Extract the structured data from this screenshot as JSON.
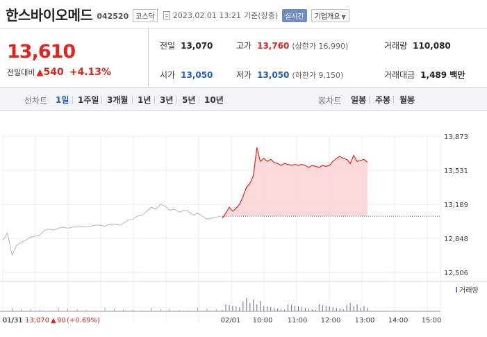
{
  "header": {
    "stock_name": "한스바이오메드",
    "stock_code": "042520",
    "market": "코스닥",
    "timestamp": "2023.02.01 13:21",
    "timestamp_suffix": "기준(장중)",
    "realtime_badge": "실시간",
    "company_info_button": "기업개요"
  },
  "quote": {
    "price": "13,610",
    "change_label": "전일대비",
    "change_symbol": "▲",
    "change_amount": "540",
    "change_percent": "+4.13%"
  },
  "stats": {
    "prev_close": {
      "label": "전일",
      "value": "13,070"
    },
    "open": {
      "label": "시가",
      "value": "13,050"
    },
    "high": {
      "label": "고가",
      "value": "13,760",
      "sub": "(상한가 16,990)"
    },
    "low": {
      "label": "저가",
      "value": "13,050",
      "sub": "(하한가 9,150)"
    },
    "volume": {
      "label": "거래량",
      "value": "110,080"
    },
    "turnover": {
      "label": "거래대금",
      "value": "1,489 백만"
    }
  },
  "range_bar": {
    "line_label": "선차트",
    "line_items": [
      "1일",
      "1주일",
      "3개월",
      "1년",
      "3년",
      "5년",
      "10년"
    ],
    "active_line_item": "1일",
    "candle_label": "봉차트",
    "candle_items": [
      "일봉",
      "주봉",
      "월봉"
    ]
  },
  "chart_data": {
    "type": "line",
    "y_ticks": [
      "13,873",
      "13,531",
      "13,189",
      "12,848",
      "12,506"
    ],
    "ylim": [
      12506,
      13873
    ],
    "x_tick_labels": [
      "01/31",
      "02/01",
      "10:00",
      "11:00",
      "12:00",
      "13:00",
      "14:00",
      "15:00"
    ],
    "reference_price": 13070,
    "volume_legend": "거래량",
    "prev_day_series": {
      "color": "#b5b5b5",
      "values": [
        12830,
        12900,
        12680,
        12780,
        12810,
        12830,
        12860,
        12870,
        12880,
        12930,
        12940,
        12930,
        12950,
        12960,
        12950,
        12960,
        12960,
        12970,
        12960,
        12970,
        12980,
        12980,
        12970,
        12990,
        12990,
        12980,
        13000,
        13030,
        13040,
        13070,
        13080,
        13120,
        13160,
        13140,
        13190,
        13170,
        13130,
        13140,
        13110,
        13130,
        13120,
        13080,
        13100,
        13070,
        13040,
        13050,
        13060,
        13070
      ]
    },
    "today_series": {
      "color": "#e2251b",
      "fill": "#fbd6d8",
      "values": [
        13050,
        13100,
        13160,
        13120,
        13150,
        13190,
        13270,
        13360,
        13400,
        13480,
        13760,
        13620,
        13650,
        13620,
        13640,
        13610,
        13600,
        13580,
        13600,
        13590,
        13580,
        13590,
        13580,
        13590,
        13580,
        13560,
        13580,
        13570,
        13560,
        13580,
        13570,
        13580,
        13620,
        13650,
        13670,
        13650,
        13640,
        13600,
        13680,
        13620,
        13630,
        13640,
        13610
      ]
    }
  },
  "footer": {
    "date": "01/31",
    "close": "13,070",
    "symbol": "▲",
    "change": "90",
    "change_pct": "(+0.69%)"
  }
}
